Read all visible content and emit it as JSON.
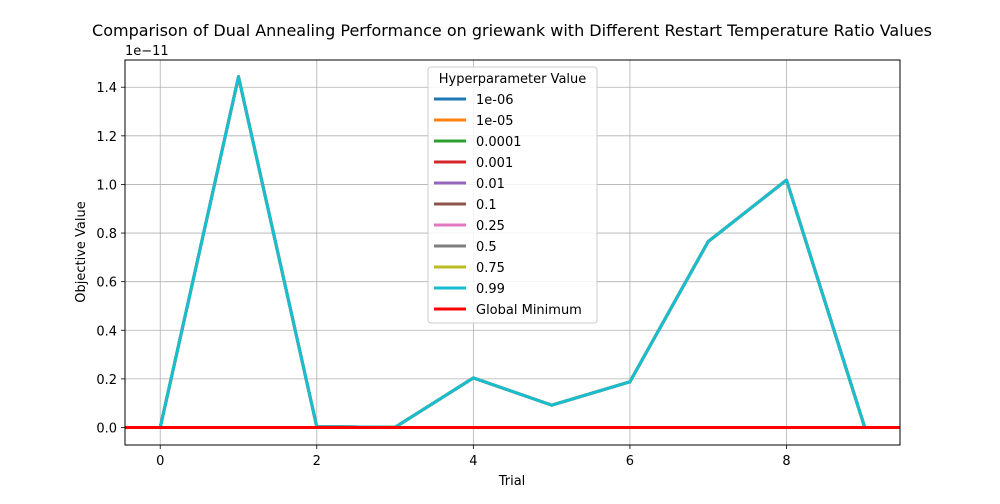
{
  "chart_data": {
    "type": "line",
    "title": "Comparison of Dual Annealing Performance on griewank with Different Restart Temperature Ratio Values",
    "xlabel": "Trial",
    "ylabel": "Objective Value",
    "offset_text": "1e−11",
    "x": [
      0,
      1,
      2,
      3,
      4,
      5,
      6,
      7,
      8,
      9
    ],
    "xlim": [
      -0.45,
      9.45
    ],
    "ylim": [
      -0.072,
      1.512
    ],
    "y_multiplier": 1e-11,
    "x_ticks": [
      0,
      2,
      4,
      6,
      8
    ],
    "x_tick_labels": [
      "0",
      "2",
      "4",
      "6",
      "8"
    ],
    "y_ticks": [
      0.0,
      0.2,
      0.4,
      0.6,
      0.8,
      1.0,
      1.2,
      1.4
    ],
    "y_tick_labels": [
      "0.0",
      "0.2",
      "0.4",
      "0.6",
      "0.8",
      "1.0",
      "1.2",
      "1.4"
    ],
    "grid": true,
    "legend": {
      "title": "Hyperparameter Value",
      "placement": "top-center"
    },
    "series": [
      {
        "name": "1e-06",
        "color": "#1f77b4",
        "values": [
          0.0,
          1.443,
          0.003,
          0.001,
          0.204,
          0.092,
          0.188,
          0.765,
          1.018,
          0.0
        ]
      },
      {
        "name": "1e-05",
        "color": "#ff7f0e",
        "values": [
          0.0,
          1.443,
          0.003,
          0.001,
          0.204,
          0.092,
          0.188,
          0.765,
          1.018,
          0.0
        ]
      },
      {
        "name": "0.0001",
        "color": "#2ca02c",
        "values": [
          0.0,
          1.443,
          0.003,
          0.001,
          0.204,
          0.092,
          0.188,
          0.765,
          1.018,
          0.0
        ]
      },
      {
        "name": "0.001",
        "color": "#d62728",
        "values": [
          0.0,
          1.443,
          0.003,
          0.001,
          0.204,
          0.092,
          0.188,
          0.765,
          1.018,
          0.0
        ]
      },
      {
        "name": "0.01",
        "color": "#9467bd",
        "values": [
          0.0,
          1.443,
          0.003,
          0.001,
          0.204,
          0.092,
          0.188,
          0.765,
          1.018,
          0.0
        ]
      },
      {
        "name": "0.1",
        "color": "#8c564b",
        "values": [
          0.0,
          1.443,
          0.003,
          0.001,
          0.204,
          0.092,
          0.188,
          0.765,
          1.018,
          0.0
        ]
      },
      {
        "name": "0.25",
        "color": "#e377c2",
        "values": [
          0.0,
          1.443,
          0.003,
          0.001,
          0.204,
          0.092,
          0.188,
          0.765,
          1.018,
          0.0
        ]
      },
      {
        "name": "0.5",
        "color": "#7f7f7f",
        "values": [
          0.0,
          1.443,
          0.003,
          0.001,
          0.204,
          0.092,
          0.188,
          0.765,
          1.018,
          0.0
        ]
      },
      {
        "name": "0.75",
        "color": "#bcbd22",
        "values": [
          0.0,
          1.443,
          0.003,
          0.001,
          0.204,
          0.092,
          0.188,
          0.765,
          1.018,
          0.0
        ]
      },
      {
        "name": "0.99",
        "color": "#17becf",
        "values": [
          0.0,
          1.443,
          0.003,
          0.001,
          0.204,
          0.092,
          0.188,
          0.765,
          1.018,
          0.0
        ]
      }
    ],
    "reference_line": {
      "name": "Global Minimum",
      "color": "#ff0000",
      "y": 0.0
    }
  }
}
